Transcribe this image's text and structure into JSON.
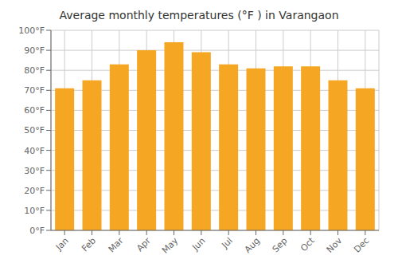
{
  "chart_data": {
    "type": "bar",
    "title": "Average monthly temperatures (°F ) in Varangaon",
    "categories": [
      "Jan",
      "Feb",
      "Mar",
      "Apr",
      "May",
      "Jun",
      "Jul",
      "Aug",
      "Sep",
      "Oct",
      "Nov",
      "Dec"
    ],
    "values": [
      71,
      75,
      83,
      90,
      94,
      89,
      83,
      81,
      82,
      82,
      75,
      71
    ],
    "color": "#F5A623",
    "ylim": [
      0,
      100
    ],
    "yticks": [
      {
        "value": 0,
        "label": "0°F"
      },
      {
        "value": 10,
        "label": "10°F"
      },
      {
        "value": 20,
        "label": "20°F"
      },
      {
        "value": 30,
        "label": "30°F"
      },
      {
        "value": 40,
        "label": "40°F"
      },
      {
        "value": 50,
        "label": "50°F"
      },
      {
        "value": 60,
        "label": "60°F"
      },
      {
        "value": 70,
        "label": "70°F"
      },
      {
        "value": 80,
        "label": "80°F"
      },
      {
        "value": 90,
        "label": "90°F"
      },
      {
        "value": 100,
        "label": "100°F"
      }
    ],
    "grid": true
  }
}
